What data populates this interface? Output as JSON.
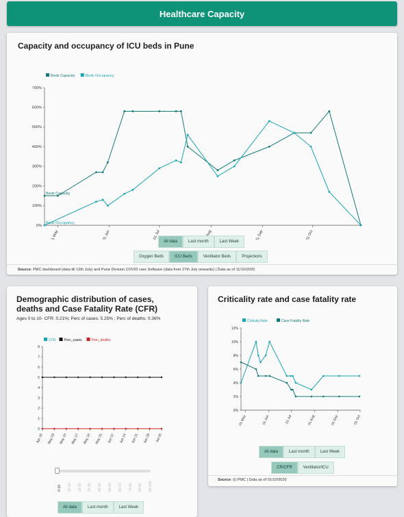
{
  "header": {
    "title": "Healthcare Capacity"
  },
  "icu_card": {
    "title": "Capacity and occupancy of ICU beds in Pune",
    "range_buttons": [
      "All data",
      "Last month",
      "Last Week"
    ],
    "type_buttons": [
      "Oxygen Beds",
      "ICU Beds",
      "Ventilator Beds",
      "Projections"
    ],
    "source_label": "Source",
    "source_text": ": PMC dashboard (data till 12th July) and Pune Division COVID care Software (data from 27th July onwards) | Data as of 11/10/2020"
  },
  "demo_card": {
    "title_line1": "Demographic distribution of cases,",
    "title_line2": "deaths and Case Fatality Rate (CFR)",
    "subtitle": "Ages 0 to 10- CFR: 0.21%; Perc of cases: 5.25% ; Perc of deaths: 0.36%",
    "range_buttons": [
      "All data",
      "Last month",
      "Last Week"
    ],
    "slider_labels": [
      "0-10",
      "10-20",
      "20-30",
      "30-40",
      "40-50",
      "50-60",
      "60-70",
      "70-80",
      "80-90",
      "90-100"
    ]
  },
  "crit_card": {
    "title": "Criticality rate and case fatality rate",
    "range_buttons": [
      "All data",
      "Last month",
      "Last Week"
    ],
    "type_buttons": [
      "CR/CFR",
      "Ventilator/ICU"
    ],
    "source_label": "Source",
    "source_text": ": (i) PMC | Data as of 01/10/2020"
  },
  "colors": {
    "accent": "#0f9378",
    "dark_teal": "#147a78",
    "light_teal": "#1aa5b2",
    "red": "#cc2222",
    "black": "#111111"
  },
  "chart_data": [
    {
      "type": "line",
      "legend": [
        "Beds Capacity",
        "Beds Occupancy"
      ],
      "legend_position": "top-left",
      "ylim": [
        0,
        700
      ],
      "y_ticks": [
        "0%",
        "100%",
        "200%",
        "300%",
        "400%",
        "500%",
        "600%",
        "700%"
      ],
      "x_ticks": [
        "01 May",
        "01 Jun",
        "01 Jul",
        "01 Aug",
        "01 Sep",
        "01 Oct"
      ],
      "series": [
        {
          "name": "Beds Capacity",
          "label": "Beds Capacity",
          "color": "#147a78",
          "x": [
            "2020-04-23",
            "2020-05-01",
            "2020-05-24",
            "2020-05-28",
            "2020-05-31",
            "2020-06-10",
            "2020-06-15",
            "2020-07-01",
            "2020-07-11",
            "2020-07-14",
            "2020-07-18",
            "2020-08-05",
            "2020-08-15",
            "2020-09-05",
            "2020-09-20",
            "2020-09-30",
            "2020-10-11",
            "2020-10-30"
          ],
          "values": [
            150,
            150,
            270,
            270,
            320,
            580,
            580,
            580,
            580,
            580,
            400,
            280,
            330,
            400,
            470,
            470,
            580,
            0
          ]
        },
        {
          "name": "Beds Occupancy",
          "label": "Beds Occupancy",
          "color": "#1aa5b2",
          "x": [
            "2020-04-23",
            "2020-05-24",
            "2020-05-28",
            "2020-05-31",
            "2020-06-10",
            "2020-06-15",
            "2020-07-01",
            "2020-07-11",
            "2020-07-14",
            "2020-07-18",
            "2020-08-05",
            "2020-08-15",
            "2020-09-05",
            "2020-09-20",
            "2020-09-30",
            "2020-10-11",
            "2020-10-30"
          ],
          "values": [
            0,
            120,
            130,
            100,
            160,
            180,
            290,
            330,
            320,
            460,
            250,
            300,
            530,
            470,
            400,
            170,
            0
          ]
        }
      ]
    },
    {
      "type": "line",
      "legend": [
        "CFR",
        "Perc_cases",
        "Perc_deaths"
      ],
      "legend_position": "top",
      "ylim": [
        0,
        8
      ],
      "y_ticks": [
        "0",
        "1",
        "2",
        "3",
        "4",
        "5",
        "6",
        "7",
        "8"
      ],
      "x_ticks": [
        "Apr 26",
        "May 03",
        "May 10",
        "May 17",
        "May 24",
        "May 31",
        "Jun 07",
        "Jun 14",
        "Jun 21",
        "Jun 28",
        "Jul 05"
      ],
      "series": [
        {
          "name": "CFR",
          "color": "#1aa5b2",
          "values": [
            0,
            0,
            0,
            0,
            0,
            0,
            0,
            0,
            0,
            0,
            0
          ]
        },
        {
          "name": "Perc_cases",
          "color": "#111111",
          "values": [
            5,
            5,
            5,
            5,
            5,
            5,
            5,
            5,
            5,
            5,
            5
          ]
        },
        {
          "name": "Perc_deaths",
          "color": "#cc2222",
          "values": [
            0,
            0,
            0,
            0,
            0,
            0,
            0,
            0,
            0,
            0,
            0
          ]
        }
      ]
    },
    {
      "type": "line",
      "legend": [
        "Criticaly Rate",
        "Case Fatality Rate"
      ],
      "legend_position": "top",
      "ylim": [
        0,
        12
      ],
      "y_ticks": [
        "0%",
        "2%",
        "4%",
        "6%",
        "8%",
        "10%",
        "12%"
      ],
      "x_ticks": [
        "01 May",
        "01 Jun",
        "01 Jul",
        "01 Aug",
        "01 Sep",
        "01 Oct"
      ],
      "series": [
        {
          "name": "Criticaly Rate",
          "color": "#1aa5b2",
          "x": [
            "2020-04-25",
            "2020-05-15",
            "2020-05-18",
            "2020-05-21",
            "2020-05-28",
            "2020-06-02",
            "2020-06-25",
            "2020-06-30",
            "2020-07-03",
            "2020-07-07",
            "2020-07-28",
            "2020-08-13",
            "2020-09-03",
            "2020-09-30"
          ],
          "values": [
            4,
            10,
            8,
            7,
            8,
            10,
            5,
            5,
            5,
            4,
            3,
            5,
            5,
            5
          ]
        },
        {
          "name": "Case Fatality Rate",
          "color": "#147a78",
          "x": [
            "2020-04-25",
            "2020-05-15",
            "2020-05-18",
            "2020-05-28",
            "2020-06-02",
            "2020-06-25",
            "2020-07-01",
            "2020-07-03",
            "2020-07-07",
            "2020-07-28",
            "2020-08-13",
            "2020-09-03",
            "2020-09-30"
          ],
          "values": [
            7,
            6,
            5,
            5,
            5,
            4,
            3,
            3,
            2,
            2,
            2,
            2,
            2
          ]
        }
      ]
    }
  ]
}
